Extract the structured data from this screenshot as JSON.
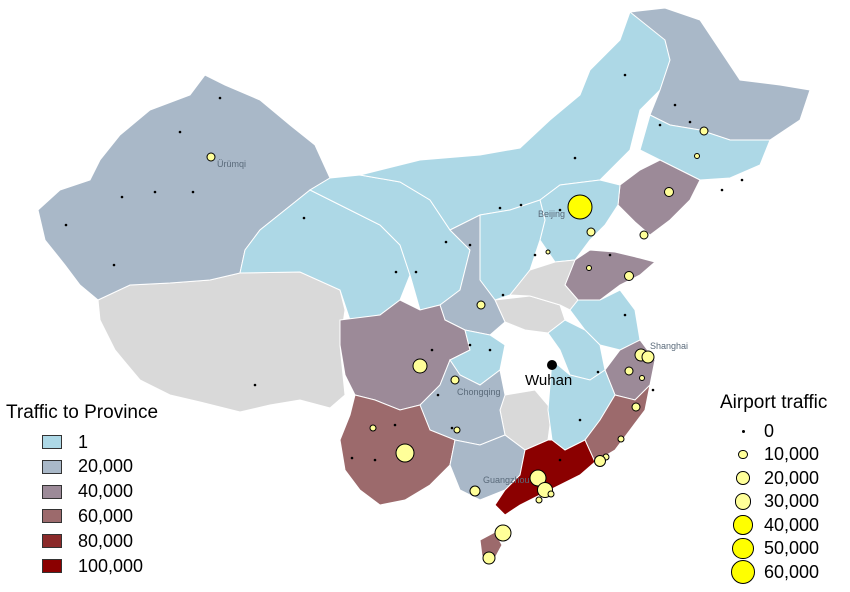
{
  "colors": {
    "background": "#ffffff",
    "no_data": "#d9d9d9",
    "province_border": "#ffffff",
    "airport_fill": "#ffff99",
    "airport_fill_large": "#ffff00",
    "scale": [
      "#add8e6",
      "#a9b8c8",
      "#9c8a98",
      "#9c6a6c",
      "#8b2a2a",
      "#8b0000"
    ]
  },
  "traffic_legend": {
    "title": "Traffic to Province",
    "items": [
      {
        "label": "1",
        "color": "#add8e6"
      },
      {
        "label": "20,000",
        "color": "#a9b8c8"
      },
      {
        "label": "40,000",
        "color": "#9c8a98"
      },
      {
        "label": "60,000",
        "color": "#9c6a6c"
      },
      {
        "label": "80,000",
        "color": "#8b2a2a"
      },
      {
        "label": "100,000",
        "color": "#8b0000"
      }
    ]
  },
  "airport_legend": {
    "title": "Airport traffic",
    "items": [
      {
        "label": "0",
        "value": 0
      },
      {
        "label": "10,000",
        "value": 10000
      },
      {
        "label": "20,000",
        "value": 20000
      },
      {
        "label": "30,000",
        "value": 30000
      },
      {
        "label": "40,000",
        "value": 40000
      },
      {
        "label": "50,000",
        "value": 50000
      },
      {
        "label": "60,000",
        "value": 60000
      }
    ]
  },
  "city_labels": {
    "urumqi": "Ürümqi",
    "beijing": "Beijing",
    "shanghai": "Shanghai",
    "chongqing": "Chongqing",
    "guangzhou": "Guangzhou",
    "wuhan": "Wuhan"
  }
}
